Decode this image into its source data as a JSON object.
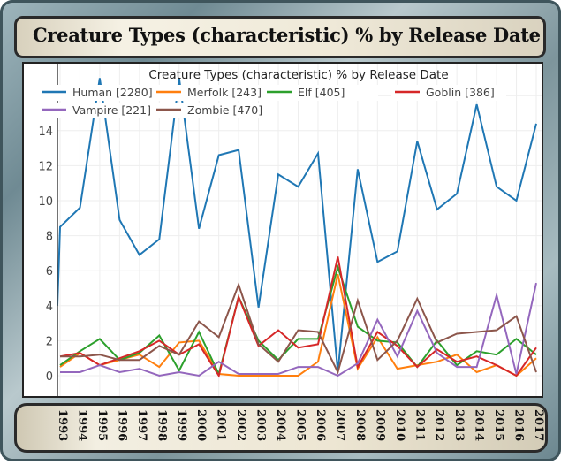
{
  "banner": {
    "title": "Creature Types (characteristic) % by Release Date"
  },
  "chart_data": {
    "type": "line",
    "title": "Creature Types (characteristic) % by Release Date",
    "xlabel": "",
    "ylabel": "",
    "ylim": [
      -1,
      16.8
    ],
    "yticks": [
      0,
      2,
      4,
      6,
      8,
      10,
      12,
      14,
      16
    ],
    "x": [
      1993,
      1994,
      1995,
      1996,
      1997,
      1998,
      1999,
      2000,
      2001,
      2002,
      2003,
      2004,
      2005,
      2006,
      2007,
      2008,
      2009,
      2010,
      2011,
      2012,
      2013,
      2014,
      2015,
      2016,
      2017
    ],
    "xticklabels": [
      "1993",
      "1994",
      "1995",
      "1996",
      "1997",
      "1998",
      "1999",
      "2000",
      "2001",
      "2002",
      "2003",
      "2004",
      "2005",
      "2006",
      "2007",
      "2008",
      "2009",
      "2010",
      "2011",
      "2012",
      "2013",
      "2014",
      "2015",
      "2016",
      "2017"
    ],
    "grid": true,
    "legend_placement": "top",
    "series": [
      {
        "name": "Human [2280]",
        "color": "#1f77b4",
        "x_extra_start": [
          1993,
          4.0
        ],
        "values": [
          8.5,
          9.6,
          17,
          8.9,
          6.9,
          7.8,
          17,
          8.4,
          12.6,
          12.9,
          3.9,
          11.5,
          10.8,
          12.7,
          0.2,
          11.8,
          6.5,
          7.1,
          13.4,
          9.5,
          10.4,
          15.5,
          10.8,
          10.0,
          14.4
        ]
      },
      {
        "name": "Merfolk [243]",
        "color": "#ff7f0e",
        "values": [
          0.5,
          1.3,
          0.6,
          0.9,
          1.2,
          0.5,
          1.9,
          2.0,
          0.1,
          0.0,
          0.0,
          0.0,
          0.0,
          0.8,
          5.8,
          0.4,
          2.2,
          0.4,
          0.6,
          0.8,
          1.2,
          0.2,
          0.6,
          0.0,
          1.0
        ]
      },
      {
        "name": "Elf [405]",
        "color": "#2ca02c",
        "values": [
          0.6,
          1.4,
          2.1,
          0.9,
          1.3,
          2.3,
          0.3,
          2.5,
          0.1,
          4.5,
          2.0,
          0.9,
          2.1,
          2.1,
          6.2,
          2.8,
          2.0,
          1.9,
          0.5,
          2.0,
          0.6,
          1.4,
          1.2,
          2.1,
          1.2
        ]
      },
      {
        "name": "Goblin [386]",
        "color": "#d62728",
        "values": [
          1.1,
          1.3,
          0.6,
          1.0,
          1.4,
          2.0,
          1.2,
          1.8,
          0.0,
          4.5,
          1.7,
          2.6,
          1.6,
          1.8,
          6.8,
          0.5,
          2.5,
          1.7,
          0.5,
          1.5,
          0.8,
          1.1,
          0.6,
          0.0,
          1.6
        ]
      },
      {
        "name": "Vampire [221]",
        "color": "#9467bd",
        "values": [
          0.2,
          0.2,
          0.6,
          0.2,
          0.4,
          0.0,
          0.2,
          0.0,
          0.8,
          0.1,
          0.1,
          0.1,
          0.5,
          0.5,
          0.0,
          0.7,
          3.2,
          1.1,
          3.7,
          1.3,
          0.5,
          0.5,
          4.6,
          0.1,
          5.3
        ]
      },
      {
        "name": "Zombie [470]",
        "color": "#8c564b",
        "values": [
          1.1,
          1.1,
          1.2,
          0.9,
          0.9,
          1.7,
          1.2,
          3.1,
          2.2,
          5.2,
          1.8,
          0.8,
          2.6,
          2.5,
          0.2,
          4.3,
          0.9,
          2.0,
          4.4,
          1.9,
          2.4,
          2.5,
          2.6,
          3.4,
          0.2
        ]
      }
    ]
  }
}
